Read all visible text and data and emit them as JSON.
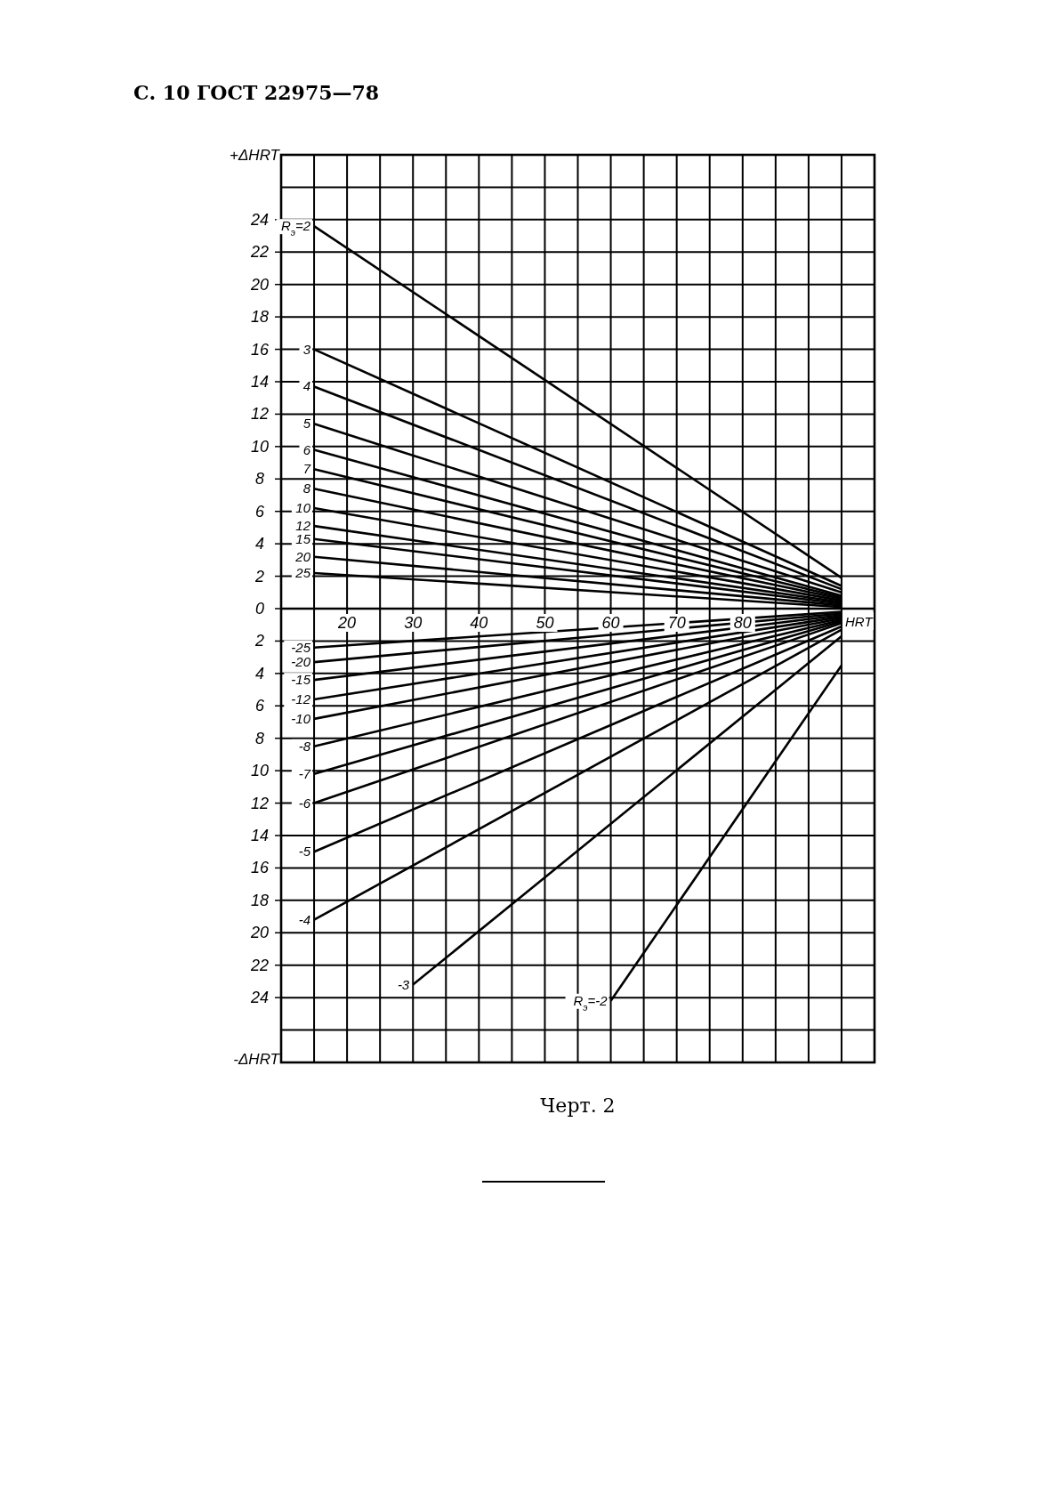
{
  "chart_data": {
    "type": "line",
    "title": "С. 10 ГОСТ 22975—78",
    "xlabel": "HRT",
    "ylabel": "+ΔHRT",
    "annotations": [
      "-ΔHRT",
      "Черт. 2"
    ],
    "xlim": [
      10,
      100
    ],
    "ylim": [
      -28,
      28
    ],
    "xticks": [
      {
        "value": 15,
        "label": null
      },
      20,
      {
        "value": 25,
        "label": null
      },
      30,
      {
        "value": 35,
        "label": null
      },
      40,
      {
        "value": 45,
        "label": null
      },
      50,
      {
        "value": 55,
        "label": null
      },
      60,
      {
        "value": 65,
        "label": null
      },
      70,
      {
        "value": 75,
        "label": null
      },
      80,
      {
        "value": 85,
        "label": null
      },
      {
        "value": 90,
        "label": null
      },
      {
        "value": 95,
        "label": null
      }
    ],
    "yticks": [
      {
        "value": -28,
        "label": null
      },
      {
        "value": -26,
        "label": null
      },
      {
        "value": -24,
        "label": "24"
      },
      {
        "value": -22,
        "label": "22"
      },
      {
        "value": -20,
        "label": "20"
      },
      {
        "value": -18,
        "label": "18"
      },
      {
        "value": -16,
        "label": "16"
      },
      {
        "value": -14,
        "label": "14"
      },
      {
        "value": -12,
        "label": "12"
      },
      {
        "value": -10,
        "label": "10"
      },
      {
        "value": -8,
        "label": "8"
      },
      {
        "value": -6,
        "label": "6"
      },
      {
        "value": -4,
        "label": "4"
      },
      {
        "value": -2,
        "label": "2"
      },
      0,
      2,
      4,
      6,
      8,
      10,
      12,
      14,
      16,
      18,
      20,
      22,
      24,
      {
        "value": 26,
        "label": null
      },
      {
        "value": 28,
        "label": null
      }
    ],
    "grid": true,
    "marker": "none",
    "series": [
      {
        "name": "R$_{э}$=2",
        "color": "#000000",
        "x": [
          15,
          95
        ],
        "values": [
          23.6,
          1.9
        ]
      },
      {
        "name": "3",
        "color": "#000000",
        "x": [
          15,
          95
        ],
        "values": [
          16,
          1.4
        ]
      },
      {
        "name": "4",
        "color": "#000000",
        "x": [
          15,
          95
        ],
        "values": [
          13.7,
          1.2
        ]
      },
      {
        "name": "5",
        "color": "#000000",
        "x": [
          15,
          95
        ],
        "values": [
          11.4,
          1
        ]
      },
      {
        "name": "6",
        "color": "#000000",
        "x": [
          15,
          95
        ],
        "values": [
          9.8,
          0.8
        ]
      },
      {
        "name": "7",
        "color": "#000000",
        "x": [
          15,
          95
        ],
        "values": [
          8.6,
          0.7
        ]
      },
      {
        "name": "8",
        "color": "#000000",
        "x": [
          15,
          95
        ],
        "values": [
          7.4,
          0.6
        ]
      },
      {
        "name": "10",
        "color": "#000000",
        "x": [
          15,
          95
        ],
        "values": [
          6.2,
          0.5
        ]
      },
      {
        "name": "12",
        "color": "#000000",
        "x": [
          15,
          95
        ],
        "values": [
          5.1,
          0.4
        ]
      },
      {
        "name": "15",
        "color": "#000000",
        "x": [
          15,
          95
        ],
        "values": [
          4.3,
          0.3
        ]
      },
      {
        "name": "20",
        "color": "#000000",
        "x": [
          15,
          95
        ],
        "values": [
          3.2,
          0.2
        ]
      },
      {
        "name": "25",
        "color": "#000000",
        "x": [
          15,
          95
        ],
        "values": [
          2.2,
          0.1
        ]
      },
      {
        "name": "-25",
        "color": "#000000",
        "x": [
          15,
          95
        ],
        "values": [
          -2.4,
          -0.2
        ]
      },
      {
        "name": "-20",
        "color": "#000000",
        "x": [
          15,
          95
        ],
        "values": [
          -3.3,
          -0.3
        ]
      },
      {
        "name": "-15",
        "color": "#000000",
        "x": [
          15,
          95
        ],
        "values": [
          -4.4,
          -0.4
        ]
      },
      {
        "name": "-12",
        "color": "#000000",
        "x": [
          15,
          95
        ],
        "values": [
          -5.6,
          -0.5
        ]
      },
      {
        "name": "-10",
        "color": "#000000",
        "x": [
          15,
          95
        ],
        "values": [
          -6.8,
          -0.6
        ]
      },
      {
        "name": "-8",
        "color": "#000000",
        "x": [
          15,
          95
        ],
        "values": [
          -8.5,
          -0.7
        ]
      },
      {
        "name": "-7",
        "color": "#000000",
        "x": [
          15,
          95
        ],
        "values": [
          -10.2,
          -0.8
        ]
      },
      {
        "name": "-6",
        "color": "#000000",
        "x": [
          15,
          95
        ],
        "values": [
          -12,
          -0.9
        ]
      },
      {
        "name": "-5",
        "color": "#000000",
        "x": [
          15,
          95
        ],
        "values": [
          -15,
          -1.1
        ]
      },
      {
        "name": "-4",
        "color": "#000000",
        "x": [
          15,
          95
        ],
        "values": [
          -19.2,
          -1.3
        ]
      },
      {
        "name": "-3",
        "color": "#000000",
        "x": [
          30,
          95
        ],
        "values": [
          -23.2,
          -1.7
        ]
      },
      {
        "name": "R$_{э}$=-2",
        "color": "#000000",
        "x": [
          60,
          95
        ],
        "values": [
          -24.2,
          -3.5
        ]
      }
    ]
  }
}
